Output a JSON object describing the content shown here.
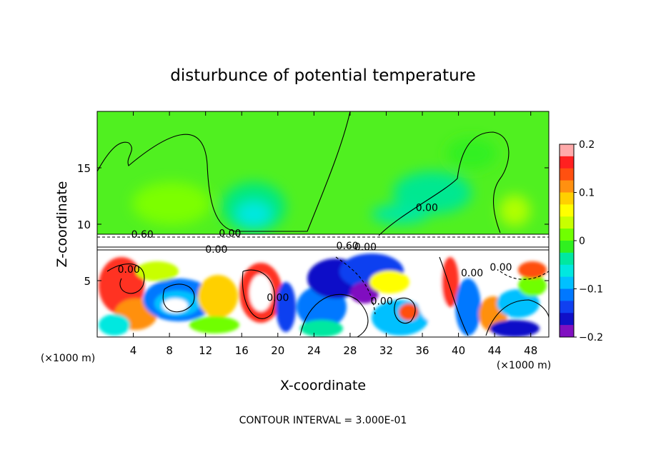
{
  "chart_data": {
    "type": "heatmap",
    "title": "disturbunce of potential temperature",
    "xlabel": "X-coordinate",
    "ylabel": "Z-coordinate",
    "x_unit": "(×1000 m)",
    "z_unit": "(×1000 m)",
    "xlim": [
      0,
      50
    ],
    "ylim": [
      0,
      20
    ],
    "x_ticks": [
      4,
      8,
      12,
      16,
      20,
      24,
      28,
      32,
      36,
      40,
      44,
      48
    ],
    "y_ticks": [
      5,
      10,
      15
    ],
    "colorbar": {
      "range": [
        -0.2,
        0.2
      ],
      "tick_values": [
        0.2,
        0.1,
        0,
        -0.1,
        -0.2
      ],
      "tick_labels": [
        "0.2",
        "0.1",
        "0",
        "−0.1",
        "−0.2"
      ],
      "colors": [
        "#ffaaaa",
        "#ff2020",
        "#ff5010",
        "#ff9010",
        "#ffd000",
        "#ffff00",
        "#c8ff00",
        "#70ff00",
        "#30f020",
        "#00e8a0",
        "#00e8e0",
        "#00c0ff",
        "#0078ff",
        "#1040f0",
        "#1010c8",
        "#8010c0"
      ]
    },
    "contour_labels": [
      {
        "text": "0.60",
        "x": 5.0,
        "z": 9.1
      },
      {
        "text": "0.00",
        "x": 14.7,
        "z": 9.2
      },
      {
        "text": "0.00",
        "x": 13.2,
        "z": 7.8
      },
      {
        "text": "0.00",
        "x": 29.7,
        "z": 8.0
      },
      {
        "text": "0.60",
        "x": 27.7,
        "z": 8.1
      },
      {
        "text": "0.00",
        "x": 36.5,
        "z": 11.5
      },
      {
        "text": "0.00",
        "x": 3.5,
        "z": 6.0
      },
      {
        "text": "0.00",
        "x": 20.0,
        "z": 3.5
      },
      {
        "text": "0.00",
        "x": 31.5,
        "z": 3.2
      },
      {
        "text": "0.00",
        "x": 41.5,
        "z": 5.7
      },
      {
        "text": "0.00",
        "x": 44.7,
        "z": 6.2
      }
    ],
    "annotation": "CONTOUR INTERVAL = 3.000E-01"
  }
}
